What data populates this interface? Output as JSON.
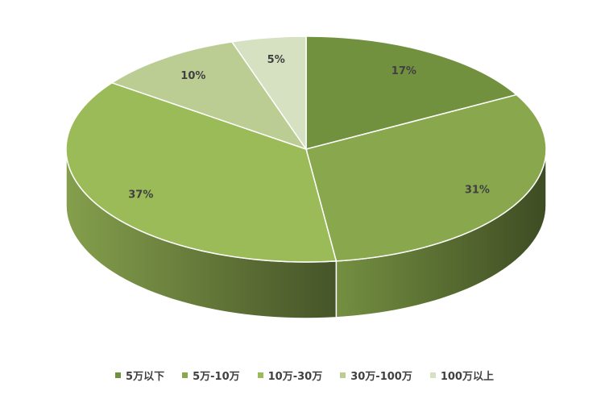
{
  "chart_data": {
    "type": "pie3d",
    "categories": [
      "5万以下",
      "5万-10万",
      "10万-30万",
      "30万-100万",
      "100万以上"
    ],
    "values": [
      17,
      31,
      37,
      10,
      5
    ],
    "value_labels": [
      "17%",
      "31%",
      "37%",
      "10%",
      "5%"
    ],
    "colors": [
      "#71913f",
      "#89a84d",
      "#9bbb59",
      "#bccd94",
      "#d6e1c1"
    ],
    "legend": "bottom"
  }
}
